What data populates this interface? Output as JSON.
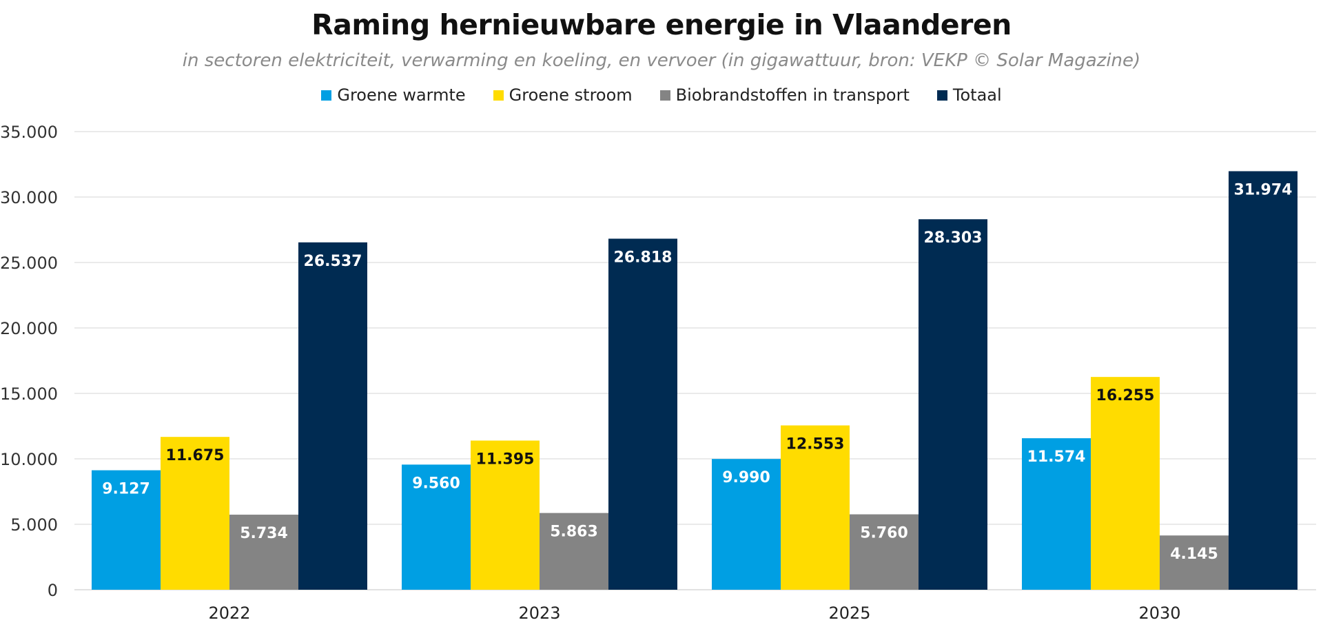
{
  "chart_data": {
    "type": "bar",
    "title": "Raming hernieuwbare energie in Vlaanderen",
    "subtitle": "in sectoren elektriciteit, verwarming en koeling, en vervoer (in gigawattuur, bron: VEKP © Solar Magazine)",
    "categories": [
      "2022",
      "2023",
      "2025",
      "2030"
    ],
    "series": [
      {
        "name": "Groene warmte",
        "color": "#009fe3",
        "label_color": "#ffffff",
        "values": [
          9127,
          9560,
          9990,
          11574
        ],
        "labels": [
          "9.127",
          "9.560",
          "9.990",
          "11.574"
        ]
      },
      {
        "name": "Groene stroom",
        "color": "#ffdc00",
        "label_color": "#111111",
        "values": [
          11675,
          11395,
          12553,
          16255
        ],
        "labels": [
          "11.675",
          "11.395",
          "12.553",
          "16.255"
        ]
      },
      {
        "name": "Biobrandstoffen in transport",
        "color": "#848484",
        "label_color": "#ffffff",
        "values": [
          5734,
          5863,
          5760,
          4145
        ],
        "labels": [
          "5.734",
          "5.863",
          "5.760",
          "4.145"
        ]
      },
      {
        "name": "Totaal",
        "color": "#002b52",
        "label_color": "#ffffff",
        "values": [
          26537,
          26818,
          28303,
          31974
        ],
        "labels": [
          "26.537",
          "26.818",
          "28.303",
          "31.974"
        ]
      }
    ],
    "ylim": [
      0,
      35000
    ],
    "yticks": [
      0,
      5000,
      10000,
      15000,
      20000,
      25000,
      30000,
      35000
    ],
    "ytick_labels": [
      "0",
      "5.000",
      "10.000",
      "15.000",
      "20.000",
      "25.000",
      "30.000",
      "35.000"
    ],
    "xlabel": "",
    "ylabel": "",
    "legend_position": "top-center",
    "grid": true,
    "grid_color": "#dddddd"
  }
}
